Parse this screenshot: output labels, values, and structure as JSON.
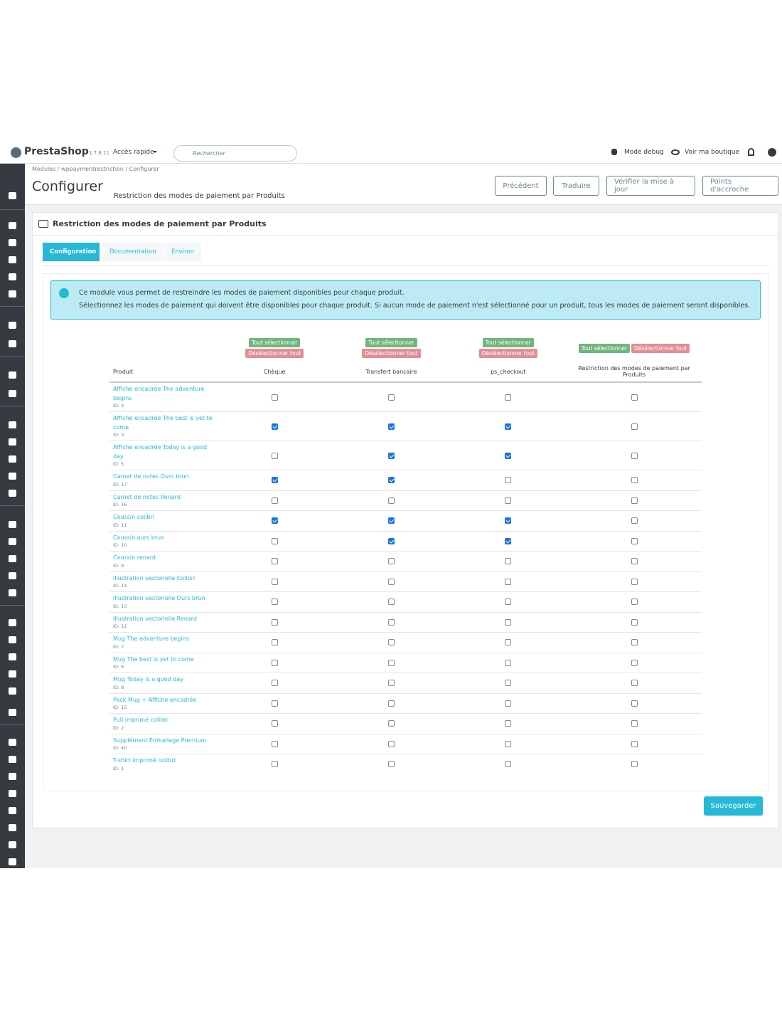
{
  "header": {
    "logo": "PrestaShop",
    "version": "1.7.8.11",
    "quick_access": "Accès rapide",
    "search_placeholder": "Rechercher",
    "debug": "Mode debug",
    "shop": "Voir ma boutique"
  },
  "breadcrumb": [
    "Modules",
    "wppaymentrestriction",
    "Configurer"
  ],
  "page": {
    "title": "Configurer",
    "subtitle": "Restriction des modes de paiement par Produits"
  },
  "toolbar": [
    "Précédent",
    "Traduire",
    "Vérifier la mise à jour",
    "Points d'accroche"
  ],
  "panel": {
    "title": "Restriction des modes de paiement par Produits",
    "tabs": [
      "Configuration",
      "Documentation",
      "Environ"
    ],
    "info": [
      "Ce module vous permet de restreindre les modes de paiement disponibles pour chaque produit.",
      "Sélectionnez les modes de paiement qui doivent être disponibles pour chaque produit. Si aucun mode de paiement n'est sélectionné pour un produit, tous les modes de paiement seront disponibles."
    ]
  },
  "table": {
    "select_all": "Tout sélectionner",
    "deselect_all": "Désélectionner tout",
    "columns": [
      "Produit",
      "Chèque",
      "Transfert bancaire",
      "ps_checkout",
      "Restriction des modes de paiement par Produits"
    ],
    "rows": [
      {
        "name": "Affiche encadrée The adventure begins",
        "id": "ID: 4",
        "checks": [
          false,
          false,
          false,
          false
        ]
      },
      {
        "name": "Affiche encadrée The best is yet to come",
        "id": "ID: 3",
        "checks": [
          true,
          true,
          true,
          false
        ]
      },
      {
        "name": "Affiche encadrée Today is a good day",
        "id": "ID: 5",
        "checks": [
          false,
          true,
          true,
          false
        ]
      },
      {
        "name": "Carnet de notes Ours brun",
        "id": "ID: 17",
        "checks": [
          true,
          true,
          false,
          false
        ]
      },
      {
        "name": "Carnet de notes Renard",
        "id": "ID: 16",
        "checks": [
          false,
          false,
          false,
          false
        ]
      },
      {
        "name": "Coussin colibri",
        "id": "ID: 11",
        "checks": [
          true,
          true,
          true,
          false
        ]
      },
      {
        "name": "Coussin ours brun",
        "id": "ID: 10",
        "checks": [
          false,
          true,
          true,
          false
        ]
      },
      {
        "name": "Coussin renard",
        "id": "ID: 9",
        "checks": [
          false,
          false,
          false,
          false
        ]
      },
      {
        "name": "Illustration vectorielle Colibri",
        "id": "ID: 14",
        "checks": [
          false,
          false,
          false,
          false
        ]
      },
      {
        "name": "Illustration vectorielle Ours brun",
        "id": "ID: 13",
        "checks": [
          false,
          false,
          false,
          false
        ]
      },
      {
        "name": "Illustration vectorielle Renard",
        "id": "ID: 12",
        "checks": [
          false,
          false,
          false,
          false
        ]
      },
      {
        "name": "Mug The adventure begins",
        "id": "ID: 7",
        "checks": [
          false,
          false,
          false,
          false
        ]
      },
      {
        "name": "Mug The best is yet to come",
        "id": "ID: 6",
        "checks": [
          false,
          false,
          false,
          false
        ]
      },
      {
        "name": "Mug Today is a good day",
        "id": "ID: 8",
        "checks": [
          false,
          false,
          false,
          false
        ]
      },
      {
        "name": "Pack Mug + Affiche encadrée",
        "id": "ID: 15",
        "checks": [
          false,
          false,
          false,
          false
        ]
      },
      {
        "name": "Pull imprimé colibri",
        "id": "ID: 2",
        "checks": [
          false,
          false,
          false,
          false
        ]
      },
      {
        "name": "Supplément Emballage Premium",
        "id": "ID: 40",
        "checks": [
          false,
          false,
          false,
          false
        ]
      },
      {
        "name": "T-shirt imprimé colibri",
        "id": "ID: 1",
        "checks": [
          false,
          false,
          false,
          false
        ]
      }
    ]
  },
  "save": "Sauvegarder"
}
